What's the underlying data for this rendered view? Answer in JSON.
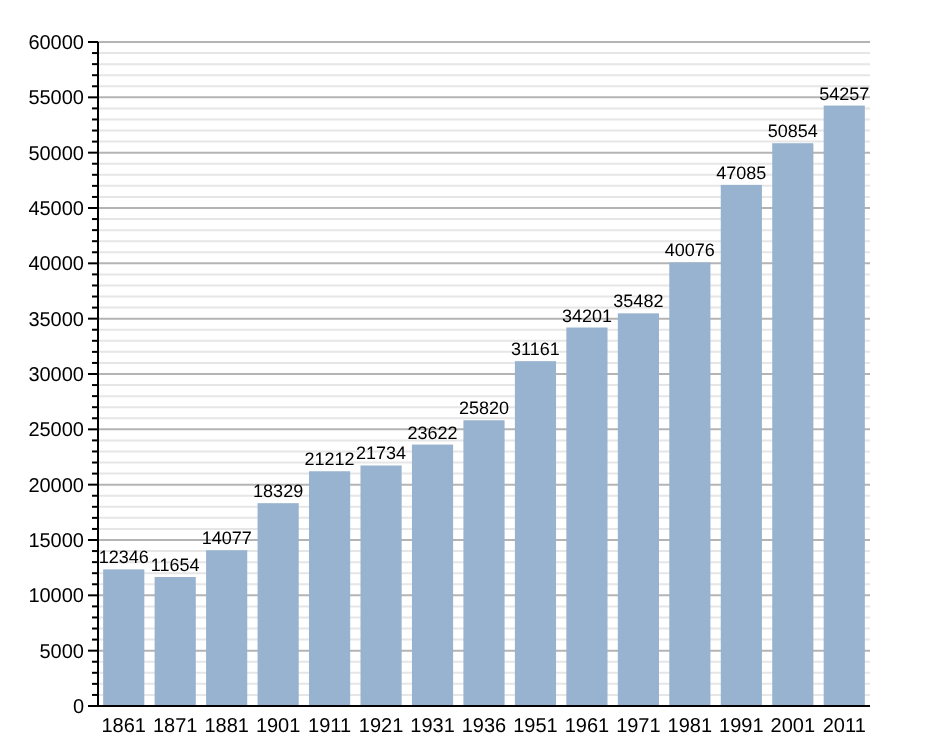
{
  "chart_data": {
    "type": "bar",
    "categories": [
      "1861",
      "1871",
      "1881",
      "1901",
      "1911",
      "1921",
      "1931",
      "1936",
      "1951",
      "1961",
      "1971",
      "1981",
      "1991",
      "2001",
      "2011"
    ],
    "values": [
      12346,
      11654,
      14077,
      18329,
      21212,
      21734,
      23622,
      25820,
      31161,
      34201,
      35482,
      40076,
      47085,
      50854,
      54257
    ],
    "color": "#98b3cf",
    "data_labels": true,
    "grid": "y",
    "ylim": [
      0,
      60000
    ],
    "yticks": [
      0,
      {
        "value": 1000,
        "label": null
      },
      {
        "value": 2000,
        "label": null
      },
      {
        "value": 3000,
        "label": null
      },
      {
        "value": 4000,
        "label": null
      },
      5000,
      {
        "value": 6000,
        "label": null
      },
      {
        "value": 7000,
        "label": null
      },
      {
        "value": 8000,
        "label": null
      },
      {
        "value": 9000,
        "label": null
      },
      10000,
      {
        "value": 11000,
        "label": null
      },
      {
        "value": 12000,
        "label": null
      },
      {
        "value": 13000,
        "label": null
      },
      {
        "value": 14000,
        "label": null
      },
      15000,
      {
        "value": 16000,
        "label": null
      },
      {
        "value": 17000,
        "label": null
      },
      {
        "value": 18000,
        "label": null
      },
      {
        "value": 19000,
        "label": null
      },
      20000,
      {
        "value": 21000,
        "label": null
      },
      {
        "value": 22000,
        "label": null
      },
      {
        "value": 23000,
        "label": null
      },
      {
        "value": 24000,
        "label": null
      },
      25000,
      {
        "value": 26000,
        "label": null
      },
      {
        "value": 27000,
        "label": null
      },
      {
        "value": 28000,
        "label": null
      },
      {
        "value": 29000,
        "label": null
      },
      30000,
      {
        "value": 31000,
        "label": null
      },
      {
        "value": 32000,
        "label": null
      },
      {
        "value": 33000,
        "label": null
      },
      {
        "value": 34000,
        "label": null
      },
      35000,
      {
        "value": 36000,
        "label": null
      },
      {
        "value": 37000,
        "label": null
      },
      {
        "value": 38000,
        "label": null
      },
      {
        "value": 39000,
        "label": null
      },
      40000,
      {
        "value": 41000,
        "label": null
      },
      {
        "value": 42000,
        "label": null
      },
      {
        "value": 43000,
        "label": null
      },
      {
        "value": 44000,
        "label": null
      },
      45000,
      {
        "value": 46000,
        "label": null
      },
      {
        "value": 47000,
        "label": null
      },
      {
        "value": 48000,
        "label": null
      },
      {
        "value": 49000,
        "label": null
      },
      50000,
      {
        "value": 51000,
        "label": null
      },
      {
        "value": 52000,
        "label": null
      },
      {
        "value": 53000,
        "label": null
      },
      {
        "value": 54000,
        "label": null
      },
      55000,
      {
        "value": 56000,
        "label": null
      },
      {
        "value": 57000,
        "label": null
      },
      {
        "value": 58000,
        "label": null
      },
      {
        "value": 59000,
        "label": null
      },
      60000
    ]
  }
}
